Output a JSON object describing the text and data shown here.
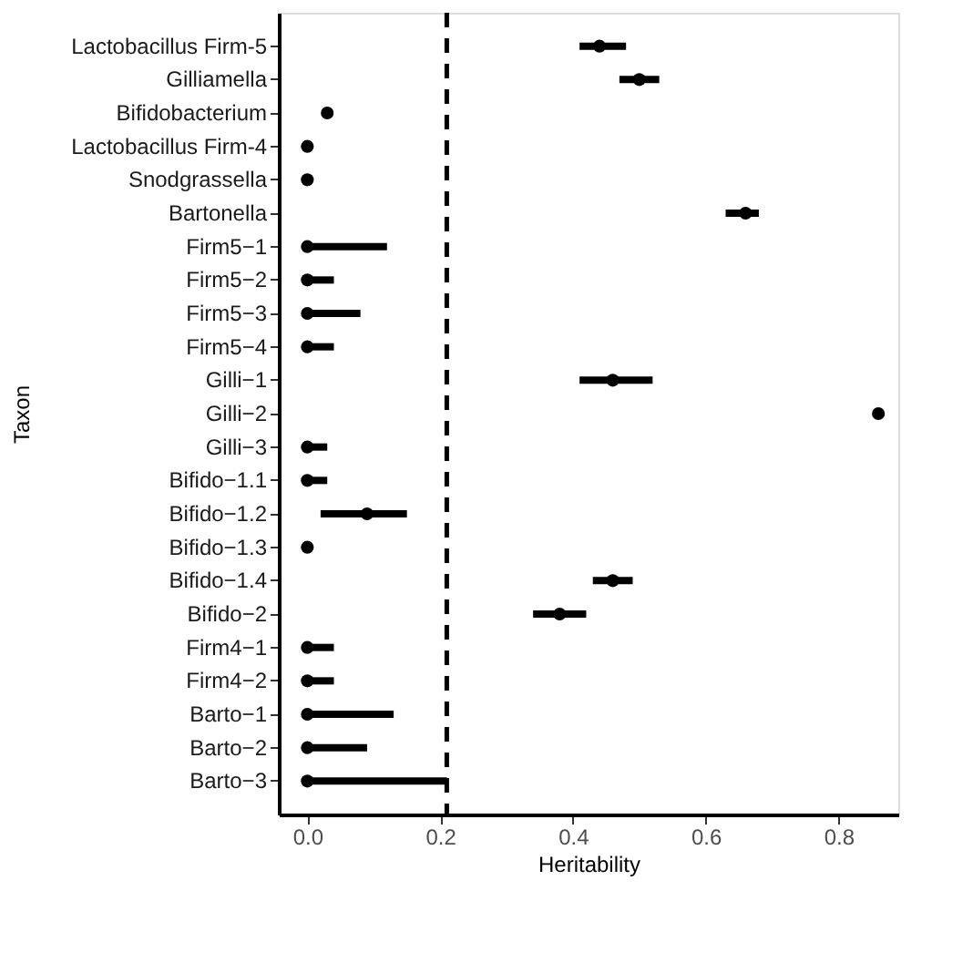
{
  "chart_data": {
    "type": "scatter",
    "orientation": "horizontal",
    "xlabel": "Heritability",
    "ylabel": "Taxon",
    "categories": [
      "Lactobacillus Firm-5",
      "Gilliamella",
      "Bifidobacterium",
      "Lactobacillus Firm-4",
      "Snodgrassella",
      "Bartonella",
      "Firm5−1",
      "Firm5−2",
      "Firm5−3",
      "Firm5−4",
      "Gilli−1",
      "Gilli−2",
      "Gilli−3",
      "Bifido−1.1",
      "Bifido−1.2",
      "Bifido−1.3",
      "Bifido−1.4",
      "Bifido−2",
      "Firm4−1",
      "Firm4−2",
      "Barto−1",
      "Barto−2",
      "Barto−3"
    ],
    "values": [
      0.44,
      0.5,
      0.03,
      0,
      0,
      0.66,
      0,
      0,
      0,
      0,
      0.46,
      0.86,
      0,
      0,
      0.09,
      0,
      0.46,
      0.38,
      0,
      0,
      0,
      0,
      0
    ],
    "errors": [
      [
        0.41,
        0.48
      ],
      [
        0.47,
        0.53
      ],
      null,
      null,
      null,
      [
        0.63,
        0.68
      ],
      [
        0,
        0.12
      ],
      [
        0,
        0.04
      ],
      [
        0,
        0.08
      ],
      [
        0,
        0.04
      ],
      [
        0.41,
        0.52
      ],
      null,
      [
        0,
        0.03
      ],
      [
        0,
        0.03
      ],
      [
        0.02,
        0.15
      ],
      null,
      [
        0.43,
        0.49
      ],
      [
        0.34,
        0.42
      ],
      [
        0,
        0.04
      ],
      [
        0,
        0.04
      ],
      [
        0,
        0.13
      ],
      [
        0,
        0.09
      ],
      [
        0,
        0.21
      ]
    ],
    "color": "#000000",
    "xlim": [
      -0.043,
      0.89
    ],
    "xticks": [
      {
        "value": 0,
        "label": "0.0"
      },
      0.2,
      0.4,
      0.6,
      0.8
    ],
    "ref_lines": [
      {
        "axis": "x",
        "value": 0.21,
        "line_style": "dashed"
      }
    ],
    "marker": "circle",
    "grid": false
  }
}
